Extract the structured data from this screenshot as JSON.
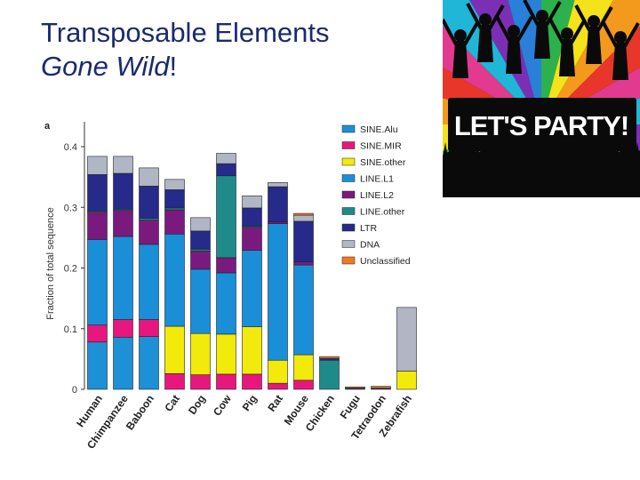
{
  "slide": {
    "title_line1": "Transposable Elements",
    "title_italic": "Gone Wild",
    "title_end": "!"
  },
  "party_image": {
    "banner_text": "LET'S PARTY!",
    "stripe_colors": [
      "#7b2fb5",
      "#2a7fd8",
      "#2bb24c",
      "#f4e21b",
      "#f39a1d",
      "#e8362b",
      "#e23a8f",
      "#1fb6d8"
    ]
  },
  "chart_data": {
    "type": "bar",
    "panel_label": "a",
    "ylabel": "Fraction of total sequence",
    "ylim": [
      0,
      0.4
    ],
    "yticks": [
      "0",
      "0.1",
      "0.2",
      "0.3",
      "0.4"
    ],
    "categories": [
      "Human",
      "Chimpanzee",
      "Baboon",
      "Cat",
      "Dog",
      "Cow",
      "Pig",
      "Rat",
      "Mouse",
      "Chicken",
      "Fugu",
      "Tetraodon",
      "Zebrafish"
    ],
    "series": [
      {
        "name": "SINE.Alu",
        "color": "#1e90d6",
        "values": [
          0.078,
          0.086,
          0.087,
          0,
          0,
          0,
          0,
          0,
          0,
          0,
          0,
          0,
          0
        ]
      },
      {
        "name": "SINE.MIR",
        "color": "#e8177d",
        "values": [
          0.028,
          0.029,
          0.028,
          0.026,
          0.024,
          0.025,
          0.025,
          0.01,
          0.015,
          0,
          0,
          0,
          0
        ]
      },
      {
        "name": "SINE.other",
        "color": "#f2ea0b",
        "values": [
          0,
          0,
          0,
          0.078,
          0.068,
          0.066,
          0.078,
          0.038,
          0.042,
          0,
          0,
          0,
          0.03
        ]
      },
      {
        "name": "LINE.L1",
        "color": "#1a8fd8",
        "values": [
          0.141,
          0.137,
          0.124,
          0.152,
          0.106,
          0.101,
          0.126,
          0.225,
          0.148,
          0,
          0,
          0,
          0
        ]
      },
      {
        "name": "LINE.L2",
        "color": "#7a1a7e",
        "values": [
          0.045,
          0.043,
          0.04,
          0.04,
          0.03,
          0.025,
          0.038,
          0.003,
          0.005,
          0,
          0,
          0,
          0
        ]
      },
      {
        "name": "LINE.other",
        "color": "#1f8a8a",
        "values": [
          0.002,
          0.002,
          0.003,
          0.003,
          0.003,
          0.135,
          0.002,
          0,
          0,
          0.048,
          0,
          0,
          0
        ]
      },
      {
        "name": "LTR",
        "color": "#262a8a",
        "values": [
          0.06,
          0.059,
          0.053,
          0.03,
          0.03,
          0.02,
          0.03,
          0.058,
          0.067,
          0.003,
          0.002,
          0.002,
          0
        ]
      },
      {
        "name": "DNA",
        "color": "#b0b6c4",
        "values": [
          0.03,
          0.028,
          0.03,
          0.017,
          0.022,
          0.017,
          0.02,
          0.007,
          0.01,
          0,
          0,
          0,
          0.105
        ]
      },
      {
        "name": "Unclassified",
        "color": "#f07a22",
        "values": [
          0,
          0,
          0,
          0,
          0,
          0,
          0,
          0,
          0.003,
          0.003,
          0.002,
          0.003,
          0
        ]
      }
    ],
    "grid": false,
    "legend_position": "right"
  }
}
